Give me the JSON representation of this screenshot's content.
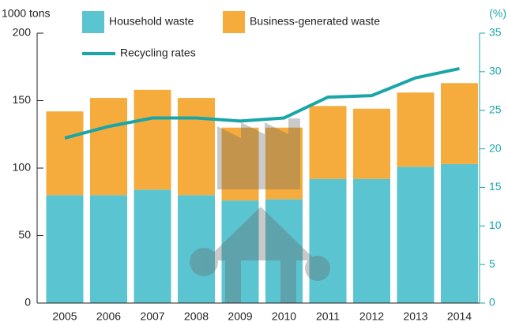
{
  "chart_data": {
    "type": "bar_line",
    "ylabel": "1000 tons",
    "y2label": "(%)",
    "categories": [
      "2005",
      "2006",
      "2007",
      "2008",
      "2009",
      "2010",
      "2011",
      "2012",
      "2013",
      "2014"
    ],
    "series": [
      {
        "name": "Household waste",
        "color": "#5bc4d1",
        "values": [
          80,
          80,
          84,
          80,
          76,
          77,
          92,
          92,
          101,
          103
        ]
      },
      {
        "name": "Business-generated waste",
        "color": "#f5ac3c",
        "values": [
          62,
          72,
          74,
          72,
          54,
          53,
          54,
          52,
          55,
          60
        ]
      },
      {
        "name": "Recycling rates",
        "color": "#1aa6a8",
        "axis": "y2",
        "values": [
          21.4,
          22.9,
          24.0,
          24.0,
          23.6,
          24.0,
          26.7,
          26.9,
          29.2,
          30.4
        ]
      }
    ],
    "ylim": [
      0,
      200
    ],
    "yticks": [
      0,
      50,
      100,
      150,
      200
    ],
    "y2lim": [
      0,
      35
    ],
    "y2ticks": [
      0,
      5,
      10,
      15,
      20,
      25,
      30,
      35
    ]
  }
}
